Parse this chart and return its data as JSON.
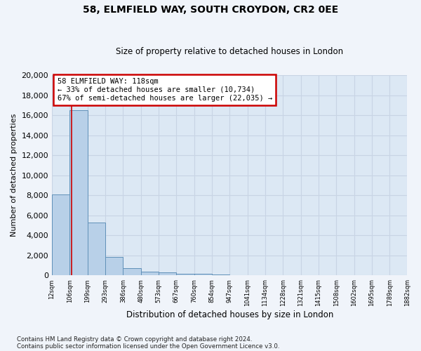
{
  "title1": "58, ELMFIELD WAY, SOUTH CROYDON, CR2 0EE",
  "title2": "Size of property relative to detached houses in London",
  "xlabel": "Distribution of detached houses by size in London",
  "ylabel": "Number of detached properties",
  "bar_values": [
    8100,
    16500,
    5300,
    1850,
    700,
    350,
    280,
    200,
    200,
    100,
    50,
    30,
    20,
    15,
    10,
    8,
    5,
    4,
    3,
    3
  ],
  "bin_labels": [
    "12sqm",
    "106sqm",
    "199sqm",
    "293sqm",
    "386sqm",
    "480sqm",
    "573sqm",
    "667sqm",
    "760sqm",
    "854sqm",
    "947sqm",
    "1041sqm",
    "1134sqm",
    "1228sqm",
    "1321sqm",
    "1415sqm",
    "1508sqm",
    "1602sqm",
    "1695sqm",
    "1789sqm",
    "1882sqm"
  ],
  "bar_color": "#b8d0e8",
  "bar_edge_color": "#6090b8",
  "vertical_line_x": 1.12,
  "vertical_line_color": "#cc0000",
  "annotation_text": "58 ELMFIELD WAY: 118sqm\n← 33% of detached houses are smaller (10,734)\n67% of semi-detached houses are larger (22,035) →",
  "annotation_box_color": "#ffffff",
  "annotation_box_edge_color": "#cc0000",
  "ylim": [
    0,
    20000
  ],
  "yticks": [
    0,
    2000,
    4000,
    6000,
    8000,
    10000,
    12000,
    14000,
    16000,
    18000,
    20000
  ],
  "grid_color": "#c8d4e4",
  "bg_color": "#dce8f4",
  "fig_color": "#f0f4fa",
  "footnote1": "Contains HM Land Registry data © Crown copyright and database right 2024.",
  "footnote2": "Contains public sector information licensed under the Open Government Licence v3.0."
}
